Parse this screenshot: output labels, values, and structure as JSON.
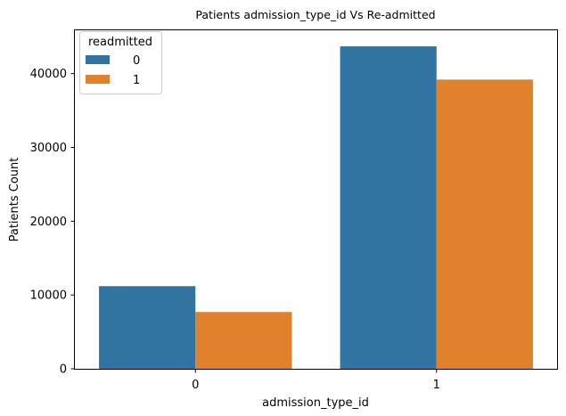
{
  "chart_data": {
    "type": "bar",
    "title": "Patients admission_type_id Vs Re-admitted",
    "xlabel": "admission_type_id",
    "ylabel": "Patients Count",
    "categories": [
      "0",
      "1"
    ],
    "series": [
      {
        "name": "0",
        "color": "#3274a1",
        "values": [
          11200,
          43700
        ]
      },
      {
        "name": "1",
        "color": "#e1812c",
        "values": [
          7700,
          39200
        ]
      }
    ],
    "ylim": [
      0,
      45880
    ],
    "yticks": [
      0,
      10000,
      20000,
      30000,
      40000
    ],
    "legend": {
      "title": "readmitted",
      "position": "top-left"
    },
    "grid": false
  }
}
